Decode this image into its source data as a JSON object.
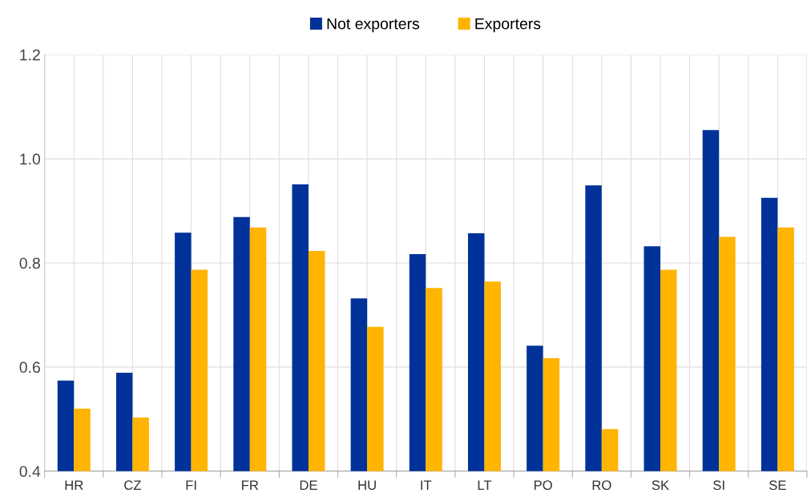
{
  "chart_data": {
    "type": "bar",
    "categories": [
      "HR",
      "CZ",
      "FI",
      "FR",
      "DE",
      "HU",
      "IT",
      "LT",
      "PO",
      "RO",
      "SK",
      "SI",
      "SE"
    ],
    "series": [
      {
        "name": "Not exporters",
        "color": "#003299",
        "values": [
          0.574,
          0.589,
          0.858,
          0.888,
          0.951,
          0.732,
          0.817,
          0.857,
          0.641,
          0.949,
          0.832,
          1.055,
          0.925
        ]
      },
      {
        "name": "Exporters",
        "color": "#ffb400",
        "values": [
          0.52,
          0.503,
          0.787,
          0.868,
          0.823,
          0.677,
          0.752,
          0.764,
          0.617,
          0.481,
          0.787,
          0.85,
          0.868
        ]
      }
    ],
    "ylim": [
      0.4,
      1.2
    ],
    "yticks": [
      {
        "value": 0.4,
        "label": "0.4"
      },
      {
        "value": 0.6,
        "label": "0.6"
      },
      {
        "value": 0.8,
        "label": "0.8"
      },
      {
        "value": 1.0,
        "label": "1.0"
      },
      {
        "value": 1.2,
        "label": "1.2"
      }
    ],
    "grid": true,
    "legend": "top"
  }
}
